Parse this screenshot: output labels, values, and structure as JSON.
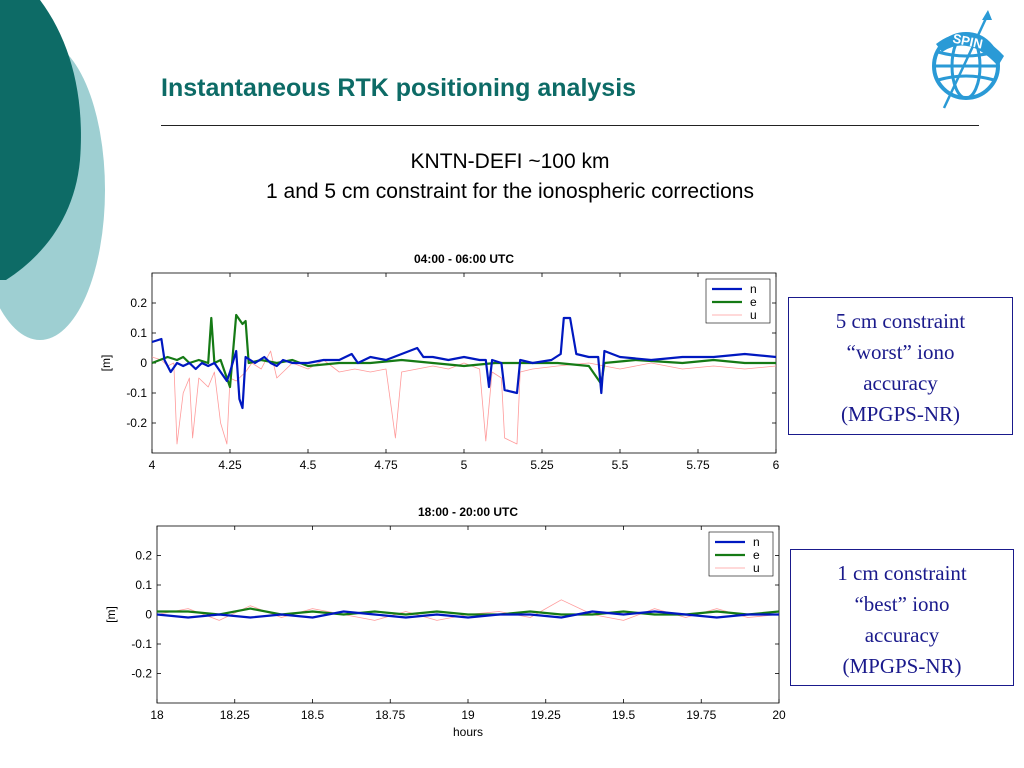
{
  "slide": {
    "title": "Instantaneous RTK positioning analysis",
    "subtitle_line1": "KNTN-DEFI  ~100 km",
    "subtitle_line2": "1 and 5 cm constraint for the ionospheric corrections",
    "logo_text": "SPIN",
    "note_top": [
      "5 cm constraint",
      "“worst” iono",
      "accuracy",
      "(MPGPS-NR)"
    ],
    "note_bottom": [
      "1 cm constraint",
      "“best” iono",
      "accuracy",
      "(MPGPS-NR)"
    ]
  },
  "colors": {
    "accent_dark": "#0d6b66",
    "accent_light": "#9ecfd2",
    "series_n": "#0018c0",
    "series_e": "#157a15",
    "series_u": "#ff9a9a",
    "note_text": "#1a1a8c"
  },
  "chart_data": [
    {
      "type": "line",
      "title": "04:00 - 06:00 UTC",
      "ylabel": "[m]",
      "xlabel": "",
      "xlim": [
        4,
        6
      ],
      "ylim": [
        -0.3,
        0.3
      ],
      "xticks": [
        "4",
        "4.25",
        "4.5",
        "4.75",
        "5",
        "5.25",
        "5.5",
        "5.75",
        "6"
      ],
      "yticks": [
        "0.2",
        "0.1",
        "0",
        "-0.1",
        "-0.2"
      ],
      "legend": [
        "n",
        "e",
        "u"
      ],
      "legend_position": "top-right",
      "series": [
        {
          "name": "n",
          "points": [
            [
              4.0,
              0.07
            ],
            [
              4.03,
              0.08
            ],
            [
              4.04,
              0.01
            ],
            [
              4.06,
              -0.03
            ],
            [
              4.08,
              0.0
            ],
            [
              4.1,
              -0.01
            ],
            [
              4.12,
              0.0
            ],
            [
              4.14,
              -0.02
            ],
            [
              4.16,
              0.0
            ],
            [
              4.18,
              -0.01
            ],
            [
              4.2,
              0.0
            ],
            [
              4.22,
              -0.03
            ],
            [
              4.24,
              -0.06
            ],
            [
              4.25,
              -0.03
            ],
            [
              4.27,
              0.04
            ],
            [
              4.28,
              -0.12
            ],
            [
              4.29,
              -0.15
            ],
            [
              4.3,
              0.02
            ],
            [
              4.33,
              0.0
            ],
            [
              4.36,
              0.02
            ],
            [
              4.38,
              0.0
            ],
            [
              4.4,
              -0.01
            ],
            [
              4.42,
              0.01
            ],
            [
              4.45,
              0.0
            ],
            [
              4.5,
              0.0
            ],
            [
              4.55,
              0.01
            ],
            [
              4.6,
              0.01
            ],
            [
              4.64,
              0.03
            ],
            [
              4.66,
              0.0
            ],
            [
              4.7,
              0.02
            ],
            [
              4.75,
              0.01
            ],
            [
              4.8,
              0.03
            ],
            [
              4.85,
              0.05
            ],
            [
              4.87,
              0.02
            ],
            [
              4.9,
              0.02
            ],
            [
              4.95,
              0.01
            ],
            [
              5.0,
              0.02
            ],
            [
              5.05,
              0.01
            ],
            [
              5.07,
              0.01
            ],
            [
              5.08,
              -0.08
            ],
            [
              5.09,
              0.01
            ],
            [
              5.12,
              0.0
            ],
            [
              5.13,
              -0.09
            ],
            [
              5.17,
              -0.1
            ],
            [
              5.18,
              0.01
            ],
            [
              5.22,
              0.0
            ],
            [
              5.28,
              0.01
            ],
            [
              5.31,
              0.03
            ],
            [
              5.32,
              0.15
            ],
            [
              5.34,
              0.15
            ],
            [
              5.36,
              0.03
            ],
            [
              5.4,
              0.02
            ],
            [
              5.43,
              0.02
            ],
            [
              5.44,
              -0.1
            ],
            [
              5.45,
              0.04
            ],
            [
              5.5,
              0.02
            ],
            [
              5.6,
              0.01
            ],
            [
              5.7,
              0.02
            ],
            [
              5.8,
              0.02
            ],
            [
              5.9,
              0.03
            ],
            [
              6.0,
              0.02
            ]
          ]
        },
        {
          "name": "e",
          "points": [
            [
              4.0,
              0.0
            ],
            [
              4.05,
              0.02
            ],
            [
              4.08,
              0.01
            ],
            [
              4.1,
              0.02
            ],
            [
              4.12,
              0.0
            ],
            [
              4.15,
              0.01
            ],
            [
              4.18,
              0.0
            ],
            [
              4.19,
              0.15
            ],
            [
              4.2,
              0.0
            ],
            [
              4.22,
              0.01
            ],
            [
              4.25,
              -0.08
            ],
            [
              4.27,
              0.16
            ],
            [
              4.29,
              0.13
            ],
            [
              4.3,
              0.14
            ],
            [
              4.31,
              0.0
            ],
            [
              4.35,
              0.01
            ],
            [
              4.4,
              0.0
            ],
            [
              4.45,
              0.01
            ],
            [
              4.5,
              -0.01
            ],
            [
              4.6,
              0.0
            ],
            [
              4.7,
              0.0
            ],
            [
              4.8,
              0.01
            ],
            [
              4.9,
              0.0
            ],
            [
              5.0,
              -0.01
            ],
            [
              5.1,
              0.0
            ],
            [
              5.2,
              0.0
            ],
            [
              5.3,
              0.0
            ],
            [
              5.4,
              -0.01
            ],
            [
              5.44,
              -0.07
            ],
            [
              5.45,
              0.0
            ],
            [
              5.55,
              0.01
            ],
            [
              5.7,
              0.0
            ],
            [
              5.8,
              0.01
            ],
            [
              5.9,
              0.0
            ],
            [
              6.0,
              0.0
            ]
          ]
        },
        {
          "name": "u",
          "points": [
            [
              4.0,
              0.02
            ],
            [
              4.03,
              0.01
            ],
            [
              4.05,
              -0.01
            ],
            [
              4.07,
              0.0
            ],
            [
              4.08,
              -0.27
            ],
            [
              4.1,
              -0.1
            ],
            [
              4.12,
              -0.05
            ],
            [
              4.13,
              -0.25
            ],
            [
              4.15,
              -0.05
            ],
            [
              4.18,
              -0.08
            ],
            [
              4.2,
              -0.03
            ],
            [
              4.22,
              -0.2
            ],
            [
              4.24,
              -0.27
            ],
            [
              4.25,
              -0.05
            ],
            [
              4.27,
              -0.06
            ],
            [
              4.3,
              -0.03
            ],
            [
              4.32,
              0.0
            ],
            [
              4.35,
              -0.02
            ],
            [
              4.38,
              0.04
            ],
            [
              4.4,
              -0.05
            ],
            [
              4.45,
              0.0
            ],
            [
              4.5,
              -0.02
            ],
            [
              4.55,
              0.01
            ],
            [
              4.6,
              -0.03
            ],
            [
              4.65,
              -0.02
            ],
            [
              4.7,
              -0.03
            ],
            [
              4.75,
              -0.02
            ],
            [
              4.78,
              -0.25
            ],
            [
              4.8,
              -0.03
            ],
            [
              4.85,
              -0.02
            ],
            [
              4.9,
              -0.01
            ],
            [
              4.95,
              -0.02
            ],
            [
              5.0,
              0.0
            ],
            [
              5.05,
              -0.02
            ],
            [
              5.07,
              -0.26
            ],
            [
              5.09,
              -0.03
            ],
            [
              5.12,
              -0.05
            ],
            [
              5.13,
              -0.25
            ],
            [
              5.17,
              -0.27
            ],
            [
              5.18,
              -0.03
            ],
            [
              5.22,
              -0.02
            ],
            [
              5.3,
              -0.01
            ],
            [
              5.4,
              0.0
            ],
            [
              5.5,
              -0.02
            ],
            [
              5.6,
              0.0
            ],
            [
              5.7,
              -0.02
            ],
            [
              5.8,
              -0.01
            ],
            [
              5.9,
              -0.02
            ],
            [
              6.0,
              -0.01
            ]
          ]
        }
      ]
    },
    {
      "type": "line",
      "title": "18:00 - 20:00 UTC",
      "ylabel": "[m]",
      "xlabel": "hours",
      "xlim": [
        18,
        20
      ],
      "ylim": [
        -0.3,
        0.3
      ],
      "xticks": [
        "18",
        "18.25",
        "18.5",
        "18.75",
        "19",
        "19.25",
        "19.5",
        "19.75",
        "20"
      ],
      "yticks": [
        "0.2",
        "0.1",
        "0",
        "-0.1",
        "-0.2"
      ],
      "legend": [
        "n",
        "e",
        "u"
      ],
      "legend_position": "top-right",
      "series": [
        {
          "name": "n",
          "points": [
            [
              18.0,
              0.0
            ],
            [
              18.1,
              -0.01
            ],
            [
              18.2,
              0.0
            ],
            [
              18.3,
              -0.01
            ],
            [
              18.4,
              0.0
            ],
            [
              18.5,
              -0.01
            ],
            [
              18.6,
              0.01
            ],
            [
              18.7,
              0.0
            ],
            [
              18.8,
              -0.01
            ],
            [
              18.9,
              0.0
            ],
            [
              19.0,
              -0.01
            ],
            [
              19.1,
              0.0
            ],
            [
              19.2,
              0.0
            ],
            [
              19.3,
              -0.01
            ],
            [
              19.4,
              0.01
            ],
            [
              19.5,
              0.0
            ],
            [
              19.6,
              0.01
            ],
            [
              19.7,
              0.0
            ],
            [
              19.8,
              -0.01
            ],
            [
              19.9,
              0.0
            ],
            [
              20.0,
              0.0
            ]
          ]
        },
        {
          "name": "e",
          "points": [
            [
              18.0,
              0.01
            ],
            [
              18.1,
              0.01
            ],
            [
              18.2,
              0.0
            ],
            [
              18.3,
              0.02
            ],
            [
              18.4,
              0.0
            ],
            [
              18.5,
              0.01
            ],
            [
              18.6,
              0.0
            ],
            [
              18.7,
              0.01
            ],
            [
              18.8,
              0.0
            ],
            [
              18.9,
              0.01
            ],
            [
              19.0,
              0.0
            ],
            [
              19.1,
              0.0
            ],
            [
              19.2,
              0.01
            ],
            [
              19.3,
              0.0
            ],
            [
              19.4,
              0.0
            ],
            [
              19.5,
              0.01
            ],
            [
              19.6,
              0.0
            ],
            [
              19.7,
              0.0
            ],
            [
              19.8,
              0.01
            ],
            [
              19.9,
              0.0
            ],
            [
              20.0,
              0.01
            ]
          ]
        },
        {
          "name": "u",
          "points": [
            [
              18.0,
              0.0
            ],
            [
              18.1,
              0.02
            ],
            [
              18.2,
              -0.02
            ],
            [
              18.3,
              0.03
            ],
            [
              18.4,
              -0.01
            ],
            [
              18.5,
              0.02
            ],
            [
              18.6,
              0.0
            ],
            [
              18.7,
              -0.02
            ],
            [
              18.8,
              0.01
            ],
            [
              18.9,
              -0.02
            ],
            [
              19.0,
              0.0
            ],
            [
              19.1,
              0.01
            ],
            [
              19.2,
              -0.01
            ],
            [
              19.3,
              0.05
            ],
            [
              19.4,
              0.0
            ],
            [
              19.5,
              -0.02
            ],
            [
              19.6,
              0.02
            ],
            [
              19.7,
              -0.01
            ],
            [
              19.8,
              0.02
            ],
            [
              19.9,
              -0.01
            ],
            [
              20.0,
              0.0
            ]
          ]
        }
      ]
    }
  ]
}
